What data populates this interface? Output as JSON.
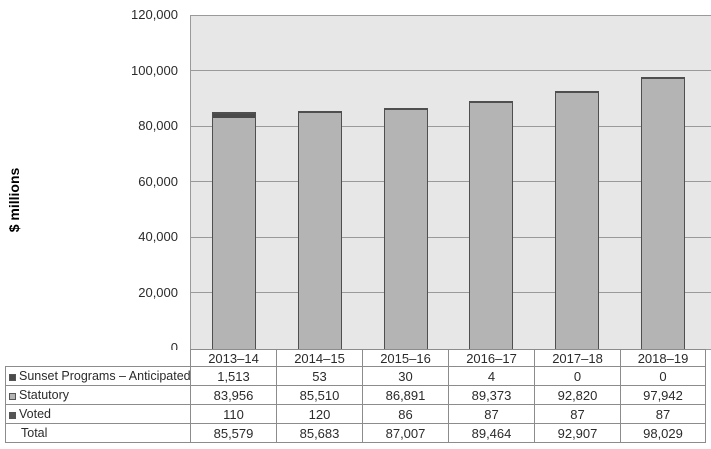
{
  "chart_data": {
    "type": "bar",
    "stacked": true,
    "ylabel": "$ millions",
    "ylim": [
      0,
      120000
    ],
    "ytick_interval": 20000,
    "ytick_labels": [
      "0",
      "20,000",
      "40,000",
      "60,000",
      "80,000",
      "100,000",
      "120,000"
    ],
    "categories": [
      "2013–14",
      "2014–15",
      "2015–16",
      "2016–17",
      "2017–18",
      "2018–19"
    ],
    "series": [
      {
        "name": "Sunset Programs – Anticipated",
        "color": "#4a4a4a",
        "position": "top",
        "values": [
          1513,
          53,
          30,
          4,
          0,
          0
        ],
        "display": [
          "1,513",
          "53",
          "30",
          "4",
          "0",
          "0"
        ]
      },
      {
        "name": "Statutory",
        "color": "#b4b4b4",
        "position": "middle",
        "values": [
          83956,
          85510,
          86891,
          89373,
          92820,
          97942
        ],
        "display": [
          "83,956",
          "85,510",
          "86,891",
          "89,373",
          "92,820",
          "97,942"
        ]
      },
      {
        "name": "Voted",
        "color": "#555555",
        "position": "bottom",
        "values": [
          110,
          120,
          86,
          87,
          87,
          87
        ],
        "display": [
          "110",
          "120",
          "86",
          "87",
          "87",
          "87"
        ]
      }
    ],
    "total_row": {
      "name": "Total",
      "values": [
        85579,
        85683,
        87007,
        89464,
        92907,
        98029
      ],
      "display": [
        "85,579",
        "85,683",
        "87,007",
        "89,464",
        "92,907",
        "98,029"
      ]
    },
    "grid": "horizontal",
    "legend_position": "table-left",
    "plot_bg": "#e7e7e7",
    "gridline_color": "#9a9a9a",
    "bar_border_color": "#4f4f4f"
  }
}
